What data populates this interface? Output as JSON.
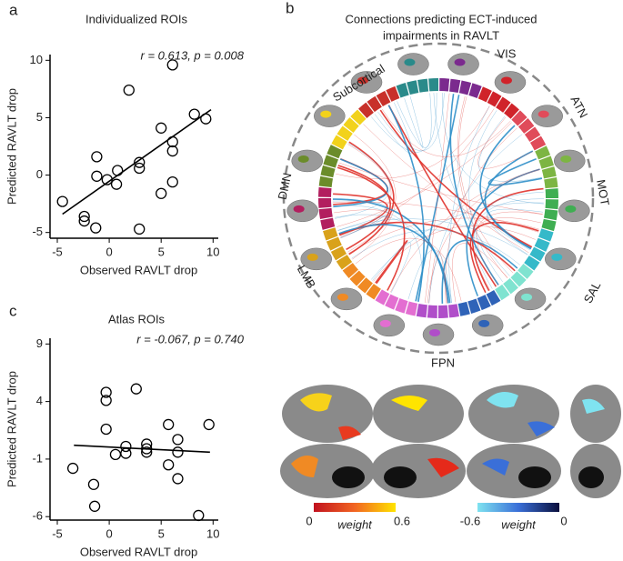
{
  "panel_labels": [
    "a",
    "b",
    "c"
  ],
  "chart_data": [
    {
      "type": "scatter",
      "title": "Individualized ROIs",
      "annotation": "r = 0.613, p = 0.008",
      "x_label": "Observed RAVLT drop",
      "y_label": "Predicted RAVLT drop",
      "color": "#000000",
      "x": [
        -4.5,
        -2.4,
        -2.4,
        -1.3,
        -1.2,
        -1.2,
        -0.2,
        0.8,
        0.7,
        1.9,
        2.9,
        2.9,
        2.9,
        5.0,
        5.0,
        6.1,
        6.1,
        6.1,
        6.1,
        8.2,
        9.3
      ],
      "values": [
        -2.3,
        -3.6,
        -4.0,
        -4.6,
        1.6,
        -0.1,
        -0.4,
        0.4,
        -0.8,
        7.4,
        0.6,
        1.1,
        -4.7,
        4.1,
        -1.6,
        2.9,
        2.1,
        -0.6,
        9.6,
        5.3,
        4.9
      ],
      "fit": {
        "x": [
          -4.5,
          9.8
        ],
        "values": [
          -3.4,
          5.7
        ]
      },
      "xlim": [
        -5.7,
        10.5
      ],
      "ylim": [
        -5.5,
        10.5
      ],
      "xticks": [
        -5,
        0,
        5,
        10
      ],
      "yticks": [
        -5,
        0,
        5,
        10
      ]
    },
    {
      "type": "scatter",
      "title": "Atlas ROIs",
      "annotation": "r = -0.067, p = 0.740",
      "x_label": "Observed RAVLT drop",
      "y_label": "Predicted RAVLT drop",
      "color": "#000000",
      "x": [
        -3.5,
        -1.5,
        -1.4,
        -0.3,
        -0.3,
        -0.3,
        0.6,
        1.6,
        1.6,
        2.6,
        3.6,
        3.6,
        3.6,
        5.7,
        5.7,
        6.6,
        6.6,
        6.6,
        8.6,
        9.6
      ],
      "values": [
        -1.8,
        -3.2,
        -5.1,
        1.6,
        4.8,
        4.1,
        -0.6,
        0.1,
        -0.5,
        5.1,
        -0.1,
        -0.4,
        0.3,
        2.0,
        -1.5,
        0.7,
        -0.4,
        -2.7,
        -5.9,
        2.0
      ],
      "fit": {
        "x": [
          -3.4,
          9.7
        ],
        "values": [
          0.2,
          -0.4
        ]
      },
      "xlim": [
        -5.7,
        10.5
      ],
      "ylim": [
        -6.3,
        9.5
      ],
      "xticks": [
        -5,
        0,
        5,
        10
      ],
      "yticks": [
        -6,
        -1,
        4,
        9
      ]
    }
  ],
  "connectogram": {
    "title_lines": [
      "Connections predicting ECT-induced",
      "impairments in RAVLT"
    ],
    "networks": [
      "Subcortical",
      "VIS",
      "ATN",
      "MOT",
      "SAL",
      "FPN",
      "LMB",
      "DMN"
    ],
    "colorbars": [
      {
        "ticks": [
          0,
          0.6
        ],
        "label": "weight"
      },
      {
        "ticks": [
          -0.6,
          0
        ],
        "label": "weight"
      }
    ]
  }
}
